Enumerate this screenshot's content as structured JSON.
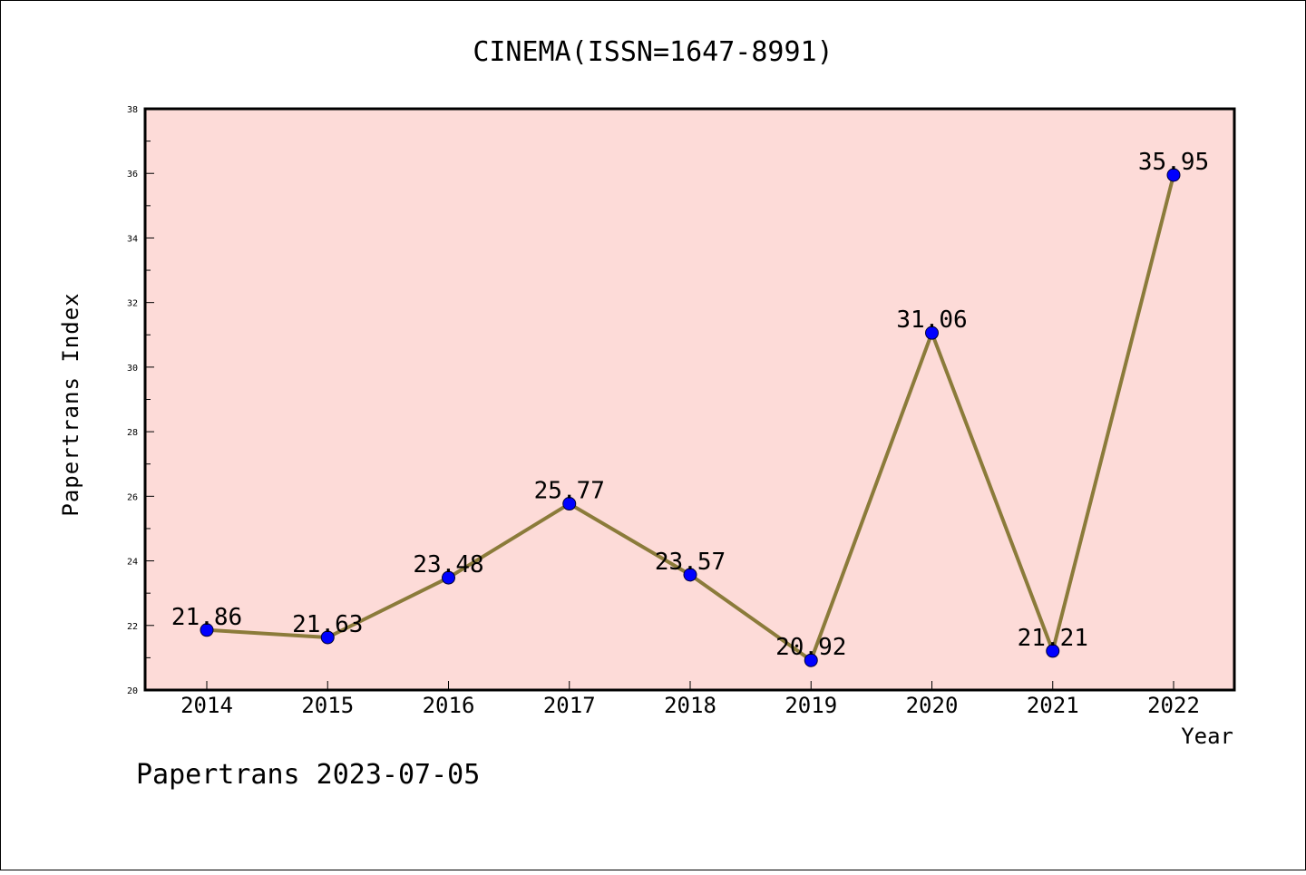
{
  "chart_data": {
    "type": "line",
    "title": "CINEMA(ISSN=1647-8991)",
    "xlabel": "Year",
    "ylabel": "Papertrans Index",
    "categories": [
      "2014",
      "2015",
      "2016",
      "2017",
      "2018",
      "2019",
      "2020",
      "2021",
      "2022"
    ],
    "series": [
      {
        "values": [
          21.86,
          21.63,
          23.48,
          25.77,
          23.57,
          20.92,
          31.06,
          21.21,
          35.95
        ],
        "data_labels": [
          "21.86",
          "21.63",
          "23.48",
          "25.77",
          "23.57",
          "20.92",
          "31.06",
          "21.21",
          "35.95"
        ]
      }
    ],
    "ylim": [
      20,
      38
    ],
    "yticks": [
      "20",
      "22",
      "24",
      "26",
      "28",
      "30",
      "32",
      "34",
      "36",
      "38"
    ],
    "grid": false,
    "legend": "none",
    "colors": {
      "plot_background": "#fddbd8",
      "line": "#8b7b3a",
      "marker": "#0000ff"
    }
  },
  "footer": "Papertrans 2023-07-05"
}
